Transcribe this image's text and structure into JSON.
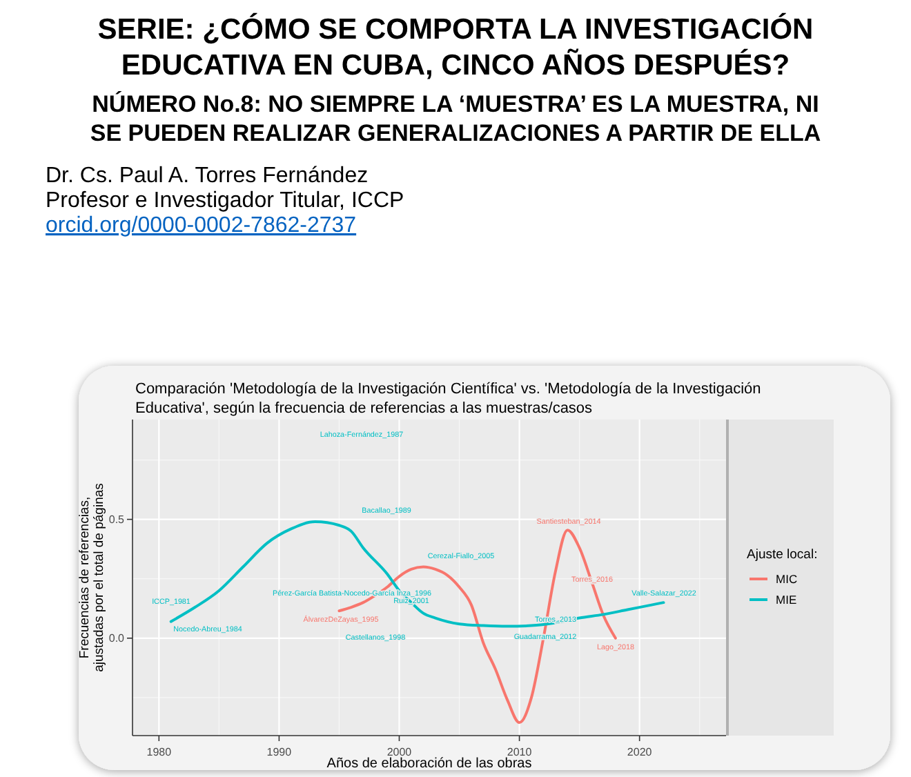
{
  "chart_data": {
    "type": "line",
    "title": "SERIE: ¿CÓMO SE COMPORTA LA INVESTIGACIÓN EDUCATIVA EN CUBA, CINCO AÑOS DESPUÉS?",
    "subtitle": "NÚMERO No.8: NO SIEMPRE LA ‘MUESTRA’ ES LA MUESTRA, NI SE PUEDEN REALIZAR GENERALIZACIONES A PARTIR DE ELLA",
    "annotations": [
      "Dr. Cs. Paul A. Torres Fernández",
      "Profesor e Investigador Titular, ICCP",
      "orcid.org/0000-0002-7862-2737",
      "Comparación 'Metodología de la Investigación Científica' vs. 'Metodología de la Investigación Educativa', según la frecuencia de referencias a las muestras/casos",
      "Lahoza-Fernández_1987",
      "Bacallao_1989",
      "Santiesteban_2014",
      "Cerezal-Fiallo_2005",
      "Torres_2016",
      "Pérez-García Batista-Nocedo-García Inza_1996",
      "Ruiz_2001",
      "Valle-Salazar_2022",
      "ICCP_1981",
      "ÁlvarezDeZayas_1995",
      "Torres_2013",
      "Nocedo-Abreu_1984",
      "Castellanos_1998",
      "Guadarrama_2012",
      "Lago_2018"
    ],
    "xlabel": "Años de elaboración de las obras",
    "ylabel": "Frecuencias de referencias, ajustadas por el total de páginas",
    "legend_title": "Ajuste local:",
    "xlim": [
      1977.8,
      2027.2
    ],
    "xticks": [
      1980,
      1990,
      2000,
      2010,
      2020
    ],
    "ylim": [
      -0.41,
      0.92
    ],
    "yticks": [
      {
        "value": 0,
        "label": "0.0"
      },
      {
        "value": 0.5,
        "label": "0.5"
      }
    ],
    "grid": true,
    "legend": "right",
    "series": [
      {
        "name": "MIC",
        "color": "#f8766d",
        "x": [
          1995,
          1996,
          1997,
          1998,
          1999,
          2000,
          2001,
          2002,
          2003,
          2004,
          2005,
          2006,
          2007,
          2008,
          2009,
          2010,
          2011,
          2012,
          2013,
          2014,
          2015,
          2016,
          2017,
          2018
        ],
        "values": [
          0.115,
          0.13,
          0.15,
          0.18,
          0.215,
          0.26,
          0.29,
          0.3,
          0.29,
          0.265,
          0.215,
          0.14,
          -0.02,
          -0.13,
          -0.26,
          -0.355,
          -0.25,
          0.0,
          0.28,
          0.455,
          0.38,
          0.24,
          0.095,
          0.0
        ]
      },
      {
        "name": "MIE",
        "color": "#00bfc4",
        "x": [
          1981,
          1983,
          1985,
          1987,
          1989,
          1991,
          1993,
          1995,
          1996,
          1997,
          1999,
          2000,
          2001,
          2002,
          2003,
          2005,
          2007,
          2009,
          2011,
          2013,
          2015,
          2017,
          2019,
          2021,
          2022
        ],
        "values": [
          0.07,
          0.13,
          0.2,
          0.3,
          0.4,
          0.46,
          0.49,
          0.475,
          0.45,
          0.38,
          0.27,
          0.2,
          0.15,
          0.105,
          0.085,
          0.06,
          0.053,
          0.05,
          0.053,
          0.065,
          0.085,
          0.1,
          0.12,
          0.14,
          0.15
        ]
      }
    ]
  }
}
